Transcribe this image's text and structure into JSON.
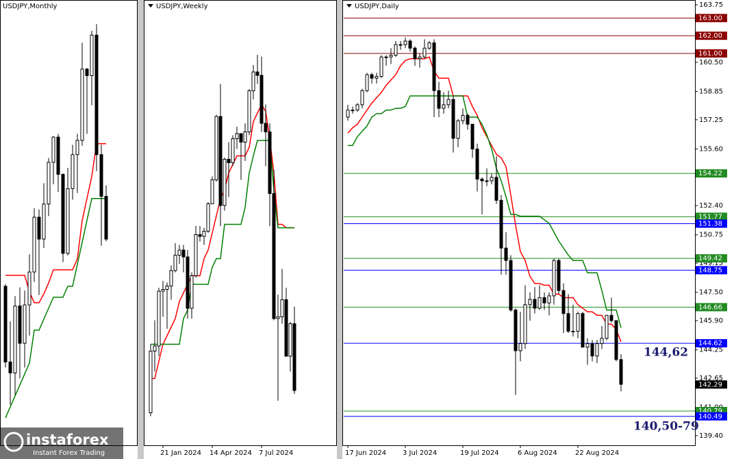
{
  "chart_data": [
    {
      "type": "candlestick",
      "title": "USDJPY,Monthly",
      "ylim": [
        123.5,
        164.1
      ],
      "ohlc": [
        [
          138.0,
          138.2,
          130.6,
          131.1
        ],
        [
          131.1,
          134.8,
          127.2,
          130.1
        ],
        [
          130.1,
          137.1,
          128.1,
          136.2
        ],
        [
          136.2,
          137.9,
          129.6,
          132.8
        ],
        [
          132.8,
          137.6,
          130.6,
          136.3
        ],
        [
          136.3,
          140.9,
          133.5,
          139.3
        ],
        [
          139.3,
          145.1,
          138.4,
          144.3
        ],
        [
          144.3,
          145.0,
          137.2,
          142.3
        ],
        [
          142.3,
          147.4,
          141.5,
          145.5
        ],
        [
          145.5,
          149.7,
          144.4,
          149.3
        ],
        [
          149.3,
          151.7,
          147.3,
          151.6
        ],
        [
          151.6,
          151.9,
          146.6,
          148.2
        ],
        [
          148.2,
          148.3,
          140.2,
          141.0
        ],
        [
          141.0,
          148.8,
          140.8,
          146.9
        ],
        [
          146.9,
          150.9,
          145.9,
          150.0
        ],
        [
          150.0,
          151.9,
          146.5,
          151.3
        ],
        [
          151.3,
          160.2,
          150.8,
          157.8
        ],
        [
          157.8,
          157.9,
          151.9,
          157.2
        ],
        [
          157.2,
          161.3,
          154.5,
          160.9
        ],
        [
          160.9,
          161.9,
          148.5,
          150.0
        ],
        [
          150.0,
          150.9,
          141.7,
          146.2
        ],
        [
          146.2,
          147.2,
          142.1,
          142.3
        ]
      ],
      "lines": [
        {
          "color": "#ff0000",
          "values": [
            139,
            139,
            139,
            139,
            139,
            137.5,
            136.5,
            136.5,
            137.3,
            138.3,
            139.5,
            139.5,
            139.5,
            139.5,
            139.5,
            140.5,
            144,
            146,
            148,
            151,
            151,
            151
          ]
        },
        {
          "color": "#008000",
          "values": [
            126,
            127,
            128,
            129,
            130,
            131,
            134,
            134,
            135,
            136,
            137,
            137,
            137,
            138,
            138,
            140,
            142,
            144,
            146,
            146,
            146,
            146
          ]
        }
      ]
    },
    {
      "type": "candlestick",
      "title": "USDJPY,Weekly",
      "ylim": [
        139.1,
        165.1
      ],
      "categories": [
        null,
        null,
        null,
        "21 Jan 2024",
        null,
        null,
        null,
        null,
        null,
        null,
        null,
        null,
        null,
        null,
        null,
        "14 Apr 2024",
        null,
        null,
        null,
        null,
        null,
        null,
        null,
        null,
        null,
        null,
        null,
        "7 Jul 2024",
        null,
        null,
        null,
        null,
        null,
        null,
        null,
        null
      ],
      "ohlc": [
        [
          141.0,
          145.0,
          140.8,
          144.6
        ],
        [
          144.6,
          146.4,
          143.4,
          144.9
        ],
        [
          144.9,
          148.3,
          144.3,
          148.1
        ],
        [
          148.1,
          148.7,
          146.6,
          148.2
        ],
        [
          148.2,
          148.6,
          145.9,
          148.4
        ],
        [
          148.4,
          149.6,
          147.6,
          149.3
        ],
        [
          149.3,
          150.9,
          149.2,
          150.2
        ],
        [
          150.2,
          150.8,
          149.7,
          150.5
        ],
        [
          150.5,
          150.8,
          149.2,
          150.1
        ],
        [
          150.1,
          150.5,
          146.5,
          147.1
        ],
        [
          147.1,
          149.2,
          146.5,
          149.0
        ],
        [
          149.0,
          151.9,
          148.9,
          151.4
        ],
        [
          151.4,
          151.9,
          151.0,
          151.3
        ],
        [
          151.3,
          151.8,
          150.8,
          151.6
        ],
        [
          151.6,
          153.3,
          151.5,
          153.2
        ],
        [
          153.2,
          154.8,
          153.2,
          154.6
        ],
        [
          154.6,
          158.4,
          154.5,
          158.3
        ],
        [
          158.3,
          160.2,
          151.9,
          153.1
        ],
        [
          153.1,
          155.9,
          152.8,
          155.8
        ],
        [
          155.8,
          156.8,
          153.6,
          155.6
        ],
        [
          155.6,
          157.2,
          155.4,
          157.0
        ],
        [
          157.0,
          157.7,
          156.4,
          157.3
        ],
        [
          157.3,
          157.3,
          154.6,
          156.8
        ],
        [
          156.8,
          157.9,
          155.7,
          157.4
        ],
        [
          157.4,
          159.9,
          157.2,
          159.8
        ],
        [
          159.8,
          161.3,
          159.3,
          160.9
        ],
        [
          160.9,
          161.9,
          160.2,
          160.7
        ],
        [
          160.7,
          161.8,
          157.4,
          157.9
        ],
        [
          157.9,
          159.0,
          155.4,
          157.4
        ],
        [
          157.4,
          157.9,
          151.9,
          153.8
        ],
        [
          153.8,
          155.2,
          146.4,
          146.5
        ],
        [
          146.5,
          147.9,
          141.7,
          146.6
        ],
        [
          146.6,
          149.4,
          146.2,
          147.6
        ],
        [
          147.6,
          148.3,
          144.3,
          144.3
        ],
        [
          144.3,
          146.3,
          143.4,
          146.2
        ],
        [
          146.2,
          147.2,
          142.1,
          142.3
        ]
      ],
      "lines": [
        {
          "color": "#ff0000",
          "values": [
            143,
            143,
            144,
            145,
            145.5,
            146,
            146.5,
            147.5,
            148,
            148.5,
            149,
            149,
            149,
            150,
            150.5,
            151.5,
            152.5,
            153.5,
            154,
            155,
            155.5,
            156,
            156,
            156,
            156.5,
            158,
            158.5,
            159,
            158.6,
            157,
            155,
            152,
            152,
            151.8,
            151.8,
            151.8
          ]
        },
        {
          "color": "#008000",
          "values": [
            145,
            145,
            145,
            145,
            145,
            145,
            145,
            145,
            146.5,
            147,
            148.5,
            148.5,
            148.5,
            148.5,
            148.5,
            149.5,
            150,
            150,
            152,
            152,
            152,
            152,
            152,
            153,
            155,
            156,
            156.9,
            156.9,
            156.9,
            156.9,
            154,
            151.8,
            151.8,
            151.8,
            151.8,
            151.8
          ]
        }
      ]
    },
    {
      "type": "candlestick",
      "title": "USDJPY,Daily",
      "ylim": [
        138.08,
        164.02
      ],
      "categories": [
        "17 Jun 2024",
        null,
        null,
        null,
        null,
        null,
        null,
        null,
        null,
        null,
        null,
        null,
        "3 Jul 2024",
        null,
        null,
        null,
        null,
        null,
        null,
        null,
        null,
        null,
        null,
        null,
        "19 Jul 2024",
        null,
        null,
        null,
        null,
        null,
        null,
        null,
        null,
        null,
        null,
        null,
        "6 Aug 2024",
        null,
        null,
        null,
        null,
        null,
        null,
        null,
        null,
        null,
        null,
        null,
        "22 Aug 2024",
        null,
        null,
        null,
        null,
        null,
        null,
        null,
        null,
        null
      ],
      "ohlc": [
        [
          157.4,
          158.1,
          157.2,
          157.8
        ],
        [
          157.8,
          158.0,
          157.6,
          157.8
        ],
        [
          157.8,
          158.2,
          157.7,
          158.1
        ],
        [
          158.1,
          159.0,
          157.9,
          158.9
        ],
        [
          158.9,
          159.9,
          158.8,
          159.8
        ],
        [
          159.8,
          159.9,
          159.3,
          159.6
        ],
        [
          159.6,
          159.9,
          159.3,
          159.7
        ],
        [
          159.7,
          160.9,
          159.6,
          160.8
        ],
        [
          160.8,
          160.9,
          160.3,
          160.8
        ],
        [
          160.8,
          161.3,
          160.4,
          160.9
        ],
        [
          160.9,
          161.7,
          160.8,
          161.5
        ],
        [
          161.5,
          161.7,
          161.2,
          161.5
        ],
        [
          161.5,
          161.9,
          161.3,
          161.7
        ],
        [
          161.7,
          161.8,
          161.1,
          161.3
        ],
        [
          161.3,
          161.4,
          160.3,
          160.7
        ],
        [
          160.7,
          161.0,
          160.2,
          160.8
        ],
        [
          160.8,
          161.8,
          160.7,
          161.3
        ],
        [
          161.3,
          161.7,
          161.2,
          161.6
        ],
        [
          161.6,
          161.8,
          157.4,
          158.9
        ],
        [
          158.9,
          159.4,
          157.4,
          157.9
        ],
        [
          157.9,
          158.8,
          157.6,
          158.1
        ],
        [
          158.1,
          158.9,
          157.9,
          158.4
        ],
        [
          158.4,
          158.6,
          155.4,
          156.2
        ],
        [
          156.2,
          157.3,
          155.7,
          157.2
        ],
        [
          157.2,
          157.9,
          157.0,
          157.5
        ],
        [
          157.5,
          157.6,
          156.7,
          157.0
        ],
        [
          157.0,
          157.0,
          155.1,
          155.6
        ],
        [
          155.6,
          155.9,
          153.2,
          153.9
        ],
        [
          153.9,
          154.0,
          151.9,
          153.8
        ],
        [
          153.8,
          154.5,
          153.5,
          153.8
        ],
        [
          153.8,
          154.2,
          153.6,
          154.0
        ],
        [
          154.0,
          155.2,
          152.5,
          152.7
        ],
        [
          152.7,
          153.0,
          148.5,
          150.0
        ],
        [
          150.0,
          150.9,
          148.5,
          149.3
        ],
        [
          149.3,
          149.6,
          146.4,
          146.5
        ],
        [
          146.5,
          146.6,
          141.7,
          144.2
        ],
        [
          144.2,
          146.4,
          143.6,
          144.6
        ],
        [
          144.6,
          147.9,
          144.3,
          146.8
        ],
        [
          146.8,
          147.5,
          145.9,
          147.1
        ],
        [
          147.1,
          147.8,
          146.3,
          146.6
        ],
        [
          146.6,
          147.9,
          146.5,
          147.2
        ],
        [
          147.2,
          147.5,
          146.5,
          146.9
        ],
        [
          146.9,
          147.5,
          146.2,
          147.3
        ],
        [
          147.3,
          149.4,
          146.8,
          149.3
        ],
        [
          149.3,
          149.4,
          147.4,
          147.6
        ],
        [
          147.6,
          148.0,
          145.2,
          146.3
        ],
        [
          146.3,
          147.4,
          145.2,
          145.3
        ],
        [
          145.3,
          146.8,
          145.0,
          145.3
        ],
        [
          145.3,
          146.4,
          144.9,
          146.3
        ],
        [
          146.3,
          146.4,
          144.4,
          144.4
        ],
        [
          144.4,
          144.9,
          143.4,
          144.6
        ],
        [
          144.6,
          144.8,
          143.6,
          143.9
        ],
        [
          143.9,
          144.8,
          143.5,
          144.6
        ],
        [
          144.6,
          145.6,
          144.3,
          144.9
        ],
        [
          144.9,
          146.2,
          144.8,
          146.2
        ],
        [
          146.2,
          147.2,
          145.8,
          145.9
        ],
        [
          145.9,
          145.9,
          143.6,
          143.7
        ],
        [
          143.7,
          144.0,
          141.9,
          142.3
        ]
      ],
      "lines": [
        {
          "color": "#ff0000",
          "values": [
            156.5,
            156.8,
            157.0,
            157.4,
            157.8,
            158.2,
            158.5,
            158.8,
            159.2,
            159.5,
            159.8,
            160.3,
            160.6,
            160.7,
            160.7,
            160.7,
            160.7,
            160.8,
            160.0,
            159.6,
            159.6,
            159.6,
            158.6,
            158.6,
            158.6,
            158.6,
            158.0,
            157.5,
            156.8,
            156.3,
            155.8,
            155.3,
            155.1,
            154.6,
            153.0,
            151.3,
            149.8,
            149.3,
            148.4,
            148.0,
            148.0,
            147.9,
            147.9,
            147.4,
            147.4,
            147.2,
            147.2,
            147.2,
            146.8,
            146.6,
            146.4,
            146.4,
            146.2,
            146.2,
            145.7,
            145.7,
            145.4,
            144.7
          ]
        },
        {
          "color": "#008000",
          "values": [
            155.8,
            155.8,
            156.3,
            156.6,
            156.9,
            157.4,
            157.6,
            157.6,
            157.8,
            157.8,
            157.9,
            157.9,
            158.0,
            158.6,
            158.6,
            158.6,
            158.6,
            158.6,
            158.6,
            158.6,
            158.6,
            158.6,
            158.6,
            158.6,
            158.6,
            157.4,
            157.4,
            157.4,
            157.0,
            156.4,
            155.6,
            154.5,
            153.8,
            152.9,
            151.9,
            151.9,
            151.8,
            151.8,
            151.8,
            151.8,
            151.8,
            151.6,
            151.4,
            150.9,
            150.4,
            150.0,
            149.6,
            149.3,
            149.3,
            149.3,
            148.6,
            148.6,
            148.6,
            147.6,
            146.5,
            146.5,
            146.5,
            145.5
          ]
        }
      ],
      "yticks": [
        163.75,
        {
          "value": 160.5,
          "label": "160.50"
        },
        158.85,
        157.25,
        {
          "value": 155.6,
          "label": "155.60"
        },
        {
          "value": 152.4,
          "label": "152.40"
        },
        150.75,
        149.15,
        {
          "value": 147.5,
          "label": "147.50"
        },
        {
          "value": 145.9,
          "label": "145.90"
        },
        144.25,
        142.65,
        {
          "value": 141,
          "label": "141.00"
        },
        {
          "value": 139.4,
          "label": "139.40"
        }
      ],
      "levels": [
        {
          "value": 163,
          "label": "163.00",
          "color": "#8b0000"
        },
        {
          "value": 162,
          "label": "162.00",
          "color": "#8b0000"
        },
        {
          "value": 161,
          "label": "161.00",
          "color": "#8b0000"
        },
        {
          "value": 154.22,
          "color": "#228b22"
        },
        {
          "value": 151.77,
          "color": "#228b22"
        },
        {
          "value": 151.38,
          "color": "#0000ff"
        },
        {
          "value": 149.42,
          "color": "#228b22"
        },
        {
          "value": 148.75,
          "color": "#0000ff"
        },
        {
          "value": 146.66,
          "color": "#228b22"
        },
        {
          "value": 144.62,
          "color": "#0000ff"
        },
        {
          "value": 140.79,
          "color": "#228b22"
        },
        {
          "value": 140.49,
          "color": "#0000ff"
        }
      ],
      "current": 142.29,
      "annotations": [
        "144,62",
        "140,50-79"
      ]
    }
  ],
  "logo": {
    "name": "instaforex",
    "tagline": "Instant Forex Trading"
  }
}
